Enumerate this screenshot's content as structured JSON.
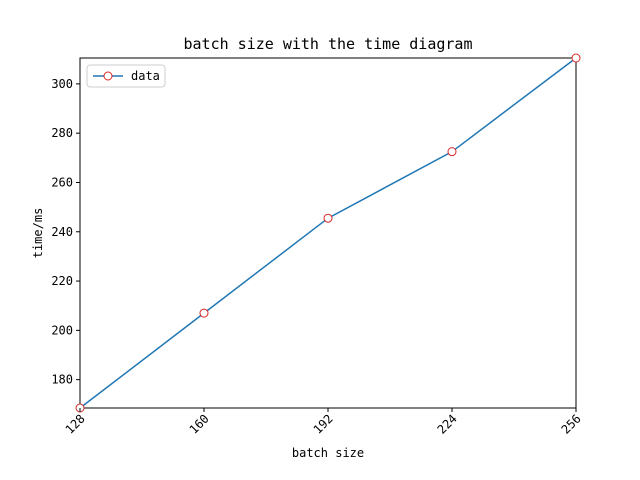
{
  "chart_data": {
    "type": "line",
    "title": "batch size with the time diagram",
    "xlabel": "batch size",
    "ylabel": "time/ms",
    "x": [
      128,
      160,
      192,
      224,
      256
    ],
    "xticks": [
      128,
      160,
      192,
      224,
      256
    ],
    "xtick_labels": [
      "128",
      "160",
      "192",
      "224",
      "256"
    ],
    "yticks": [
      180,
      200,
      220,
      240,
      260,
      280,
      300
    ],
    "ytick_labels": [
      "180",
      "200",
      "220",
      "240",
      "260",
      "280",
      "300"
    ],
    "xlim": [
      128,
      256
    ],
    "ylim": [
      168.5,
      310.5
    ],
    "grid": false,
    "legend": {
      "position": "top-left"
    },
    "series": [
      {
        "name": "data",
        "values": [
          168.5,
          207,
          245.5,
          272.5,
          310.5
        ],
        "line_color": "#1f77b4",
        "marker": "circle",
        "marker_edge_color": "#d62728",
        "marker_face_color": "#ffffff"
      }
    ]
  }
}
